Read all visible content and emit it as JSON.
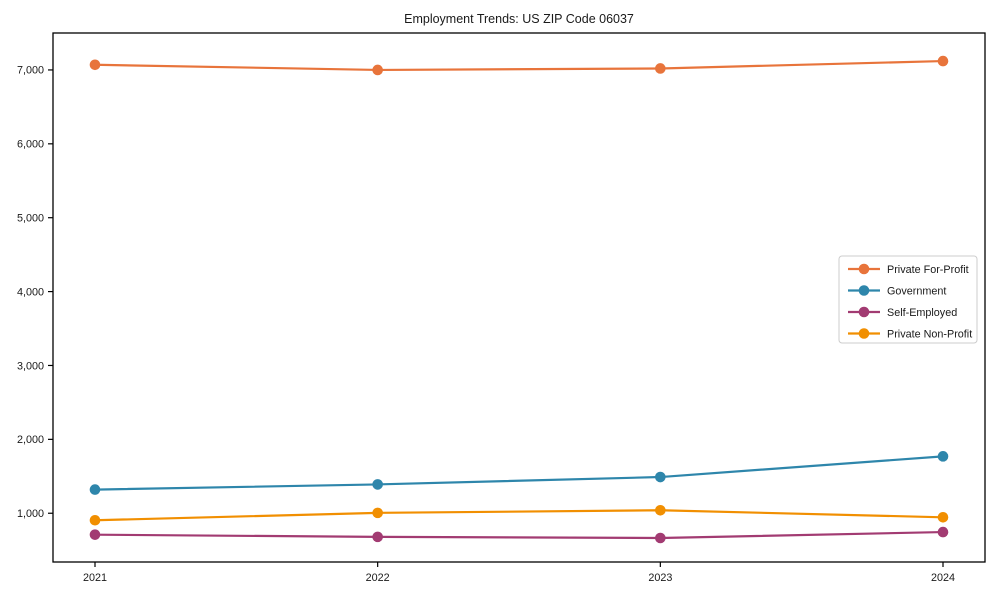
{
  "chart_data": {
    "type": "line",
    "title": "Employment Trends: US ZIP Code 06037",
    "x": [
      "2021",
      "2022",
      "2023",
      "2024"
    ],
    "series": [
      {
        "name": "Private For-Profit",
        "color": "#E8743B",
        "values": [
          7070,
          7000,
          7020,
          7120
        ]
      },
      {
        "name": "Government",
        "color": "#2E86AB",
        "values": [
          1320,
          1390,
          1490,
          1770
        ]
      },
      {
        "name": "Self-Employed",
        "color": "#A23B72",
        "values": [
          710,
          680,
          665,
          745
        ]
      },
      {
        "name": "Private Non-Profit",
        "color": "#F18F01",
        "values": [
          905,
          1005,
          1040,
          945
        ]
      }
    ],
    "ylim": [
      340,
      7500
    ],
    "yticks": [
      1000,
      2000,
      3000,
      4000,
      5000,
      6000,
      7000
    ],
    "ytick_labels": [
      "1,000",
      "2,000",
      "3,000",
      "4,000",
      "5,000",
      "6,000",
      "7,000"
    ],
    "xlabel": "",
    "ylabel": "",
    "grid": false,
    "legend_position": "center-right",
    "axis_color": "#000000",
    "background_color": "#ffffff",
    "legend_border_color": "#cccccc"
  }
}
